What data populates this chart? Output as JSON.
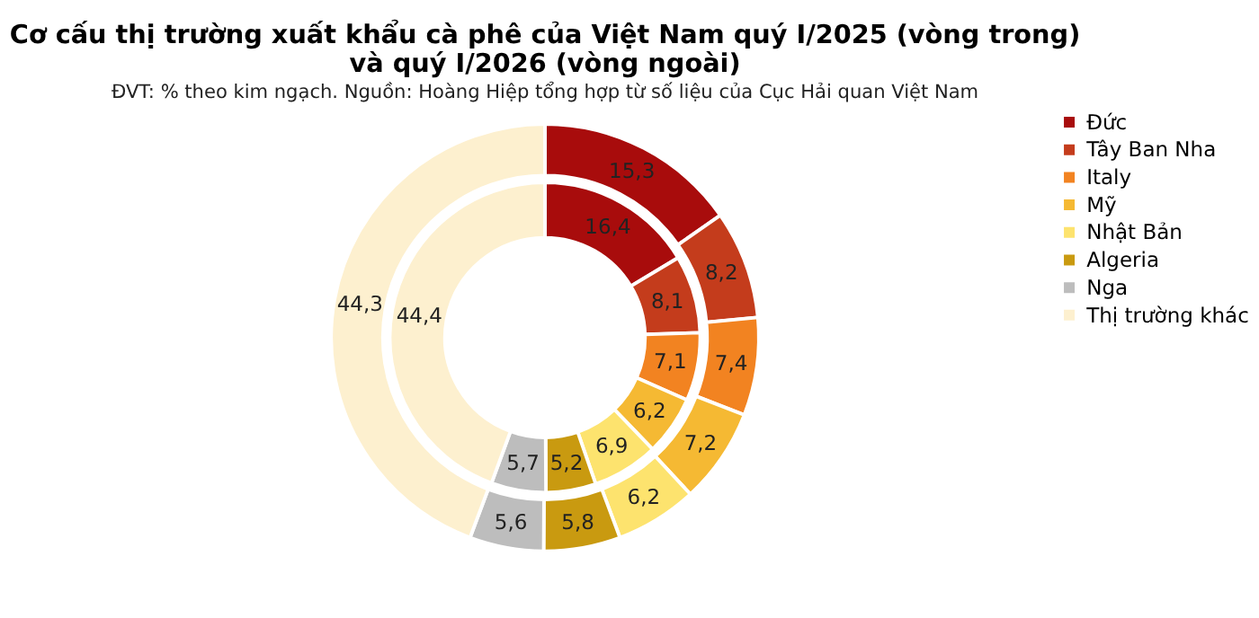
{
  "chart_data": {
    "type": "donut",
    "title": "Cơ cấu thị trường xuất khẩu cà phê của Việt Nam quý I/2025 (vòng trong)\nvà  quý I/2026 (vòng ngoài)",
    "subtitle": "ĐVT: % theo kim ngạch. Nguồn: Hoàng Hiệp tổng hợp từ số liệu của Cục Hải quan Việt Nam",
    "categories": [
      "Đức",
      "Tây Ban Nha",
      "Italy",
      "Mỹ",
      "Nhật Bản",
      "Algeria",
      "Nga",
      "Thị trường khác"
    ],
    "colors": [
      "#a80c0c",
      "#c43c1c",
      "#f28321",
      "#f5b933",
      "#fde36e",
      "#c99a10",
      "#bdbdbd",
      "#fdf0cf"
    ],
    "series": [
      {
        "values": [
          16.4,
          8.1,
          7.1,
          6.2,
          6.9,
          5.2,
          5.7,
          44.4
        ],
        "value_labels": [
          "16,4",
          "8,1",
          "7,1",
          "6,2",
          "6,9",
          "5,2",
          "5,7",
          "44,4"
        ]
      },
      {
        "values": [
          15.3,
          8.2,
          7.4,
          7.2,
          6.2,
          5.8,
          5.6,
          44.3
        ],
        "value_labels": [
          "15,3",
          "8,2",
          "7,4",
          "7,2",
          "6,2",
          "5,8",
          "5,6",
          "44,3"
        ]
      }
    ],
    "legend": "right"
  }
}
